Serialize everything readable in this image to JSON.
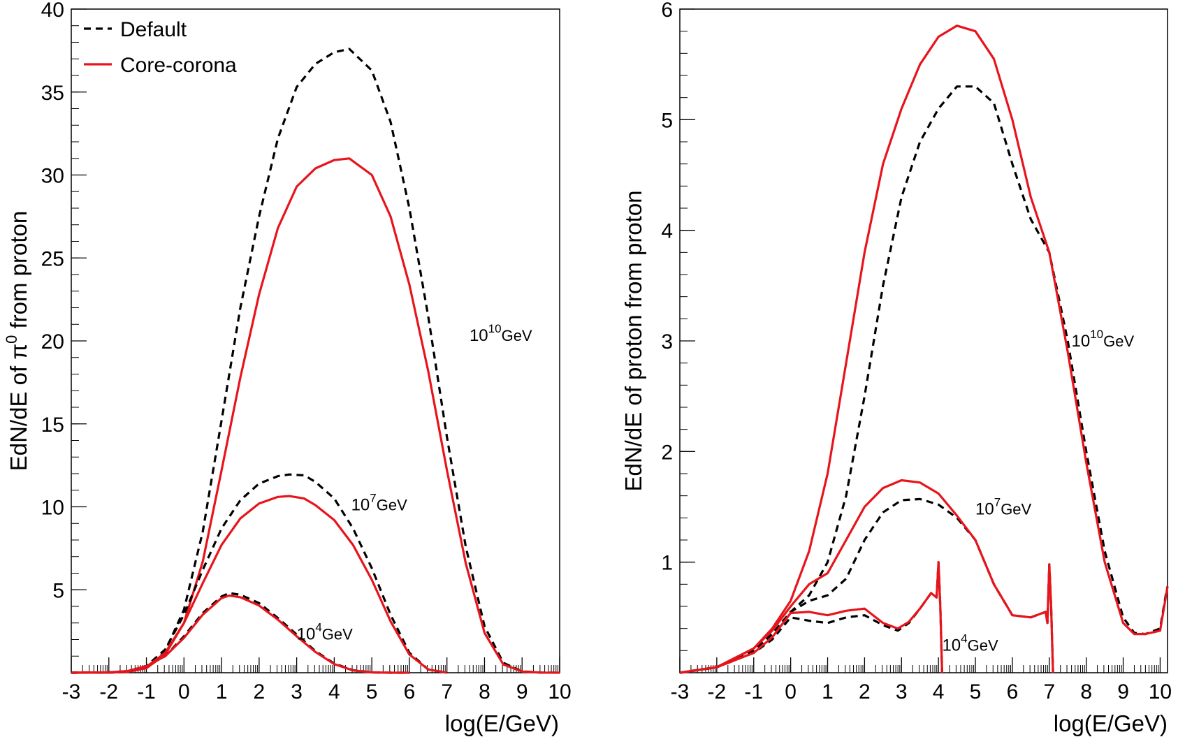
{
  "chart_data": [
    {
      "type": "line",
      "xlabel": "log(E/GeV)",
      "ylabel": {
        "prefix": "EdN/dE of ",
        "symbol": "π",
        "sup": "0",
        "suffix": " from proton"
      },
      "xlim": [
        -3,
        10
      ],
      "ylim": [
        0,
        40
      ],
      "xticks": [
        -3,
        -2,
        -1,
        0,
        1,
        2,
        3,
        4,
        5,
        6,
        7,
        8,
        9,
        10
      ],
      "yticks": [
        5,
        10,
        15,
        20,
        25,
        30,
        35,
        40
      ],
      "legend": {
        "position": "top-left",
        "entries": [
          {
            "label": "Default",
            "color": "#000000",
            "dash": true
          },
          {
            "label": "Core-corona",
            "color": "#e8141b",
            "dash": false
          }
        ]
      },
      "annotations": [
        {
          "base": "10",
          "exp": "10",
          "unit": "GeV",
          "x": 7.6,
          "y": 20
        },
        {
          "base": "10",
          "exp": "7",
          "unit": "GeV",
          "x": 4.45,
          "y": 9.8
        },
        {
          "base": "10",
          "exp": "4",
          "unit": "GeV",
          "x": 3.0,
          "y": 2.0
        }
      ],
      "series": [
        {
          "energy": "10^10",
          "model": "Default",
          "color": "#000000",
          "dash": true,
          "x": [
            -3,
            -2,
            -1.5,
            -1,
            -0.5,
            0,
            0.5,
            1,
            1.5,
            2,
            2.5,
            3,
            3.5,
            4,
            4.4,
            5,
            5.5,
            6,
            6.5,
            7,
            7.5,
            8,
            8.5,
            9,
            9.5,
            10
          ],
          "y": [
            0,
            0.01,
            0.05,
            0.3,
            1.3,
            3.8,
            8.5,
            15.2,
            22,
            27.5,
            32.2,
            35.3,
            36.7,
            37.4,
            37.6,
            36.3,
            33.2,
            28,
            21.5,
            14.2,
            7.6,
            2.8,
            0.6,
            0.08,
            0.01,
            0
          ]
        },
        {
          "energy": "10^10",
          "model": "Core-corona",
          "color": "#e8141b",
          "dash": false,
          "x": [
            -3,
            -2,
            -1.5,
            -1,
            -0.5,
            0,
            0.5,
            1,
            1.5,
            2,
            2.5,
            3,
            3.5,
            4,
            4.4,
            5,
            5.5,
            6,
            6.5,
            7,
            7.5,
            8,
            8.5,
            9,
            9.5,
            10
          ],
          "y": [
            0,
            0.01,
            0.05,
            0.28,
            1.1,
            3.0,
            6.7,
            12.2,
            17.8,
            22.8,
            26.8,
            29.3,
            30.4,
            30.9,
            31.0,
            30.0,
            27.5,
            23.4,
            18.2,
            12.2,
            6.6,
            2.4,
            0.5,
            0.07,
            0.01,
            0
          ]
        },
        {
          "energy": "10^7",
          "model": "Default",
          "color": "#000000",
          "dash": true,
          "x": [
            -3,
            -2,
            -1.5,
            -1,
            -0.5,
            0,
            0.5,
            1,
            1.5,
            2,
            2.5,
            2.8,
            3.2,
            3.5,
            4,
            4.5,
            5,
            5.5,
            6,
            6.5,
            7
          ],
          "y": [
            0,
            0.02,
            0.08,
            0.4,
            1.4,
            3.5,
            6.2,
            8.7,
            10.4,
            11.4,
            11.85,
            11.95,
            11.9,
            11.5,
            10.5,
            8.7,
            6.3,
            3.5,
            1.2,
            0.2,
            0
          ]
        },
        {
          "energy": "10^7",
          "model": "Core-corona",
          "color": "#e8141b",
          "dash": false,
          "x": [
            -3,
            -2,
            -1.5,
            -1,
            -0.5,
            0,
            0.5,
            1,
            1.5,
            2,
            2.5,
            2.8,
            3.2,
            3.5,
            4,
            4.5,
            5,
            5.5,
            6,
            6.5,
            7
          ],
          "y": [
            0,
            0.02,
            0.07,
            0.35,
            1.2,
            3.0,
            5.4,
            7.7,
            9.3,
            10.2,
            10.6,
            10.65,
            10.5,
            10.1,
            9.2,
            7.7,
            5.6,
            3.1,
            1.1,
            0.2,
            0
          ]
        },
        {
          "energy": "10^4",
          "model": "Default",
          "color": "#000000",
          "dash": true,
          "x": [
            -3,
            -2,
            -1.5,
            -1,
            -0.5,
            0,
            0.5,
            1,
            1.2,
            1.5,
            2,
            2.5,
            3,
            3.5,
            4,
            4.5,
            5,
            5.5,
            6
          ],
          "y": [
            0,
            0.02,
            0.1,
            0.4,
            1.0,
            2.2,
            3.6,
            4.6,
            4.8,
            4.7,
            4.2,
            3.3,
            2.3,
            1.3,
            0.55,
            0.15,
            0.02,
            0,
            0
          ]
        },
        {
          "energy": "10^4",
          "model": "Core-corona",
          "color": "#e8141b",
          "dash": false,
          "x": [
            -3,
            -2,
            -1.5,
            -1,
            -0.5,
            0,
            0.5,
            1,
            1.2,
            1.5,
            2,
            2.5,
            3,
            3.5,
            4,
            4.5,
            5,
            5.5,
            6
          ],
          "y": [
            0,
            0.02,
            0.1,
            0.4,
            1.0,
            2.1,
            3.5,
            4.5,
            4.65,
            4.55,
            4.05,
            3.2,
            2.2,
            1.25,
            0.52,
            0.14,
            0.02,
            0,
            0
          ]
        }
      ]
    },
    {
      "type": "line",
      "xlabel": "log(E/GeV)",
      "ylabel": {
        "prefix": "EdN/dE of proton from proton",
        "symbol": "",
        "sup": "",
        "suffix": ""
      },
      "xlim": [
        -3,
        10.2
      ],
      "ylim": [
        0,
        6
      ],
      "xticks": [
        -3,
        -2,
        -1,
        0,
        1,
        2,
        3,
        4,
        5,
        6,
        7,
        8,
        9,
        10
      ],
      "yticks": [
        1,
        2,
        3,
        4,
        5,
        6
      ],
      "legend": null,
      "annotations": [
        {
          "base": "10",
          "exp": "10",
          "unit": "GeV",
          "x": 7.6,
          "y": 2.95
        },
        {
          "base": "10",
          "exp": "7",
          "unit": "GeV",
          "x": 5.0,
          "y": 1.43
        },
        {
          "base": "10",
          "exp": "4",
          "unit": "GeV",
          "x": 4.1,
          "y": 0.2
        }
      ],
      "series": [
        {
          "energy": "10^10",
          "model": "Default",
          "color": "#000000",
          "dash": true,
          "x": [
            -3,
            -2,
            -1,
            -0.5,
            0,
            0.5,
            1,
            1.5,
            2,
            2.5,
            3,
            3.5,
            4,
            4.5,
            5,
            5.5,
            6,
            6.5,
            7,
            7.5,
            8,
            8.5,
            9,
            9.3,
            9.6,
            10,
            10.15,
            10.2
          ],
          "y": [
            0,
            0.05,
            0.2,
            0.35,
            0.55,
            0.7,
            1.0,
            1.6,
            2.5,
            3.5,
            4.3,
            4.8,
            5.1,
            5.3,
            5.3,
            5.15,
            4.6,
            4.1,
            3.8,
            3.0,
            2.0,
            1.1,
            0.5,
            0.36,
            0.35,
            0.4,
            0.7,
            0.78
          ]
        },
        {
          "energy": "10^10",
          "model": "Core-corona",
          "color": "#e8141b",
          "dash": false,
          "x": [
            -3,
            -2,
            -1,
            -0.5,
            0,
            0.5,
            1,
            1.5,
            2,
            2.5,
            3,
            3.5,
            4,
            4.5,
            5,
            5.5,
            6,
            6.5,
            7,
            7.5,
            8,
            8.5,
            9,
            9.3,
            9.6,
            10,
            10.15,
            10.2
          ],
          "y": [
            0,
            0.05,
            0.22,
            0.4,
            0.65,
            1.1,
            1.8,
            2.8,
            3.8,
            4.6,
            5.1,
            5.5,
            5.75,
            5.85,
            5.8,
            5.55,
            5.0,
            4.3,
            3.8,
            2.9,
            1.9,
            1.0,
            0.45,
            0.35,
            0.35,
            0.38,
            0.68,
            0.78
          ]
        },
        {
          "energy": "10^7",
          "model": "Default",
          "color": "#000000",
          "dash": true,
          "x": [
            -3,
            -2,
            -1,
            -0.5,
            0,
            0.5,
            1,
            1.5,
            2,
            2.5,
            3,
            3.5,
            4,
            4.5,
            5,
            5.5,
            6,
            6.5,
            6.9,
            6.95,
            7.0,
            7.05,
            7.1
          ],
          "y": [
            0,
            0.05,
            0.2,
            0.35,
            0.55,
            0.65,
            0.7,
            0.85,
            1.2,
            1.45,
            1.56,
            1.57,
            1.52,
            1.4,
            1.2,
            0.8,
            0.52,
            0.5,
            0.55,
            0.45,
            0.98,
            0.6,
            0
          ]
        },
        {
          "energy": "10^7",
          "model": "Core-corona",
          "color": "#e8141b",
          "dash": false,
          "x": [
            -3,
            -2,
            -1,
            -0.5,
            0,
            0.5,
            1,
            1.5,
            2,
            2.5,
            3,
            3.5,
            4,
            4.5,
            5,
            5.5,
            6,
            6.5,
            6.9,
            6.95,
            7.0,
            7.05,
            7.1
          ],
          "y": [
            0,
            0.05,
            0.22,
            0.38,
            0.6,
            0.8,
            0.9,
            1.2,
            1.5,
            1.67,
            1.74,
            1.72,
            1.62,
            1.42,
            1.2,
            0.8,
            0.52,
            0.5,
            0.55,
            0.45,
            0.98,
            0.6,
            0
          ]
        },
        {
          "energy": "10^4",
          "model": "Default",
          "color": "#000000",
          "dash": true,
          "x": [
            -3,
            -2,
            -1,
            -0.5,
            0,
            0.5,
            1,
            1.5,
            2,
            2.5,
            2.9,
            3.2,
            3.5,
            3.8,
            3.95,
            4.0,
            4.05,
            4.1
          ],
          "y": [
            0,
            0.05,
            0.18,
            0.3,
            0.5,
            0.47,
            0.45,
            0.5,
            0.52,
            0.43,
            0.38,
            0.45,
            0.58,
            0.72,
            0.68,
            1.0,
            0.6,
            0
          ]
        },
        {
          "energy": "10^4",
          "model": "Core-corona",
          "color": "#e8141b",
          "dash": false,
          "x": [
            -3,
            -2,
            -1,
            -0.5,
            0,
            0.5,
            1,
            1.5,
            2,
            2.5,
            2.9,
            3.2,
            3.5,
            3.8,
            3.95,
            4.0,
            4.05,
            4.1
          ],
          "y": [
            0,
            0.05,
            0.18,
            0.32,
            0.54,
            0.55,
            0.52,
            0.56,
            0.58,
            0.45,
            0.4,
            0.46,
            0.58,
            0.72,
            0.68,
            1.0,
            0.6,
            0
          ]
        }
      ]
    }
  ]
}
